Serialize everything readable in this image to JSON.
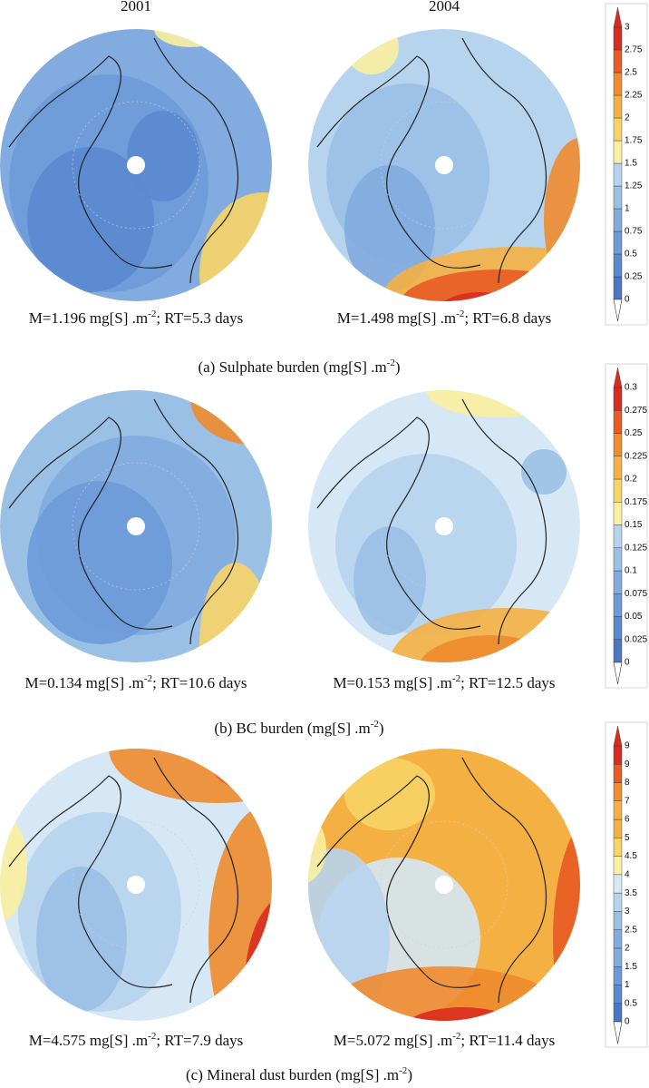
{
  "columns": [
    "2001",
    "2004"
  ],
  "panels": [
    {
      "stats": [
        {
          "text": "M=1.196 mg[S] .m",
          "sup": "-2",
          "tail": "; RT=5.3 days"
        },
        {
          "text": "M=1.498 mg[S] .m",
          "sup": "-2",
          "tail": "; RT=6.8 days"
        }
      ],
      "caption": {
        "text": "(a) Sulphate burden (mg[S] .m",
        "sup": "-2",
        "tail": ")"
      },
      "colorbar": [
        0,
        0.25,
        0.5,
        0.75,
        1,
        1.25,
        1.5,
        1.75,
        2,
        2.25,
        2.5,
        2.75,
        3
      ]
    },
    {
      "stats": [
        {
          "text": "M=0.134 mg[S] .m",
          "sup": "-2",
          "tail": "; RT=10.6 days"
        },
        {
          "text": "M=0.153 mg[S] .m",
          "sup": "-2",
          "tail": "; RT=12.5 days"
        }
      ],
      "caption": {
        "text": "(b) BC burden (mg[S] .m",
        "sup": "-2",
        "tail": ")"
      },
      "colorbar": [
        0,
        0.025,
        0.05,
        0.075,
        0.1,
        0.125,
        0.15,
        0.175,
        0.2,
        0.225,
        0.25,
        0.275,
        0.3
      ]
    },
    {
      "stats": [
        {
          "text": "M=4.575 mg[S] .m",
          "sup": "-2",
          "tail": "; RT=7.9 days"
        },
        {
          "text": "M=5.072 mg[S] .m",
          "sup": "-2",
          "tail": "; RT=11.4 days"
        }
      ],
      "caption": {
        "text": "(c) Mineral dust burden (mg[S] .m",
        "sup": "-2",
        "tail": ")"
      },
      "colorbar": [
        0,
        0.5,
        1,
        1.5,
        2,
        2.5,
        3,
        3.5,
        4,
        4.5,
        5,
        6,
        7,
        8,
        9,
        9
      ]
    }
  ]
}
